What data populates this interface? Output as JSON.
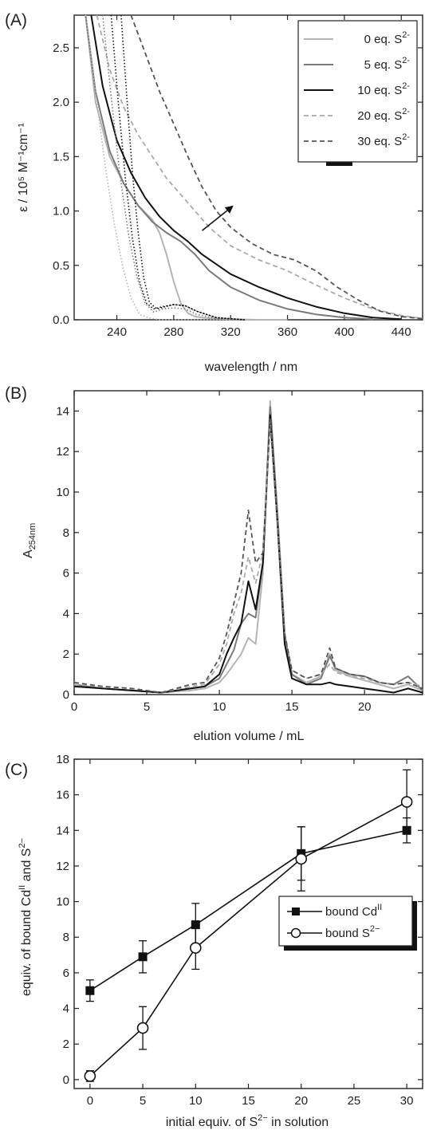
{
  "colors": {
    "light": "#b4b4b4",
    "mid": "#7a7a7a",
    "dark": "#111111",
    "dashLight": "#aaaaaa",
    "dashDark": "#555555"
  },
  "chart_data": [
    {
      "panel": "(A)",
      "type": "line",
      "xlabel": "wavelength / nm",
      "ylabel": "ε / 10⁵ M⁻¹cm⁻¹",
      "xlim": [
        210,
        455
      ],
      "ylim": [
        0,
        2.8
      ],
      "xticks": [
        "240",
        "280",
        "320",
        "360",
        "400",
        "440"
      ],
      "yticks": [
        "0.0",
        "0.5",
        "1.0",
        "1.5",
        "2.0",
        "2.5"
      ],
      "legend_position": "top-right",
      "series": [
        {
          "name": "0 eq. S2-",
          "label_text": "0 eq. S",
          "label_sup": "2-",
          "style": "light-solid",
          "x": [
            218,
            225,
            235,
            245,
            255,
            265,
            270,
            275,
            280,
            285,
            290,
            295,
            300,
            310,
            320,
            340,
            360
          ],
          "y": [
            2.8,
            2.0,
            1.5,
            1.25,
            1.05,
            0.92,
            0.8,
            0.6,
            0.35,
            0.15,
            0.06,
            0.03,
            0.02,
            0.01,
            0.005,
            0.0,
            0.0
          ]
        },
        {
          "name": "5 eq. S2-",
          "label_text": "5 eq. S",
          "label_sup": "2-",
          "style": "mid-solid",
          "x": [
            218,
            225,
            235,
            245,
            255,
            265,
            275,
            285,
            295,
            305,
            320,
            340,
            360,
            380,
            400,
            420
          ],
          "y": [
            2.8,
            2.1,
            1.55,
            1.25,
            1.05,
            0.9,
            0.8,
            0.72,
            0.6,
            0.45,
            0.3,
            0.18,
            0.1,
            0.05,
            0.02,
            0.005
          ]
        },
        {
          "name": "10 eq. S2-",
          "label_text": "10 eq. S",
          "label_sup": "2-",
          "style": "dark-solid",
          "x": [
            222,
            230,
            240,
            250,
            260,
            270,
            280,
            290,
            300,
            320,
            340,
            360,
            380,
            400,
            420,
            440
          ],
          "y": [
            2.8,
            2.15,
            1.65,
            1.35,
            1.12,
            0.95,
            0.82,
            0.72,
            0.6,
            0.42,
            0.3,
            0.2,
            0.12,
            0.06,
            0.02,
            0.005
          ]
        },
        {
          "name": "20 eq. S2-",
          "label_text": "20 eq. S",
          "label_sup": "2-",
          "style": "light-dash",
          "x": [
            226,
            235,
            245,
            255,
            265,
            275,
            285,
            295,
            305,
            320,
            340,
            360,
            380,
            400,
            420,
            440,
            455
          ],
          "y": [
            2.8,
            2.3,
            1.95,
            1.7,
            1.5,
            1.3,
            1.15,
            1.0,
            0.85,
            0.68,
            0.55,
            0.45,
            0.32,
            0.2,
            0.1,
            0.04,
            0.01
          ]
        },
        {
          "name": "30 eq. S2-",
          "label_text": "30 eq. S",
          "label_sup": "2-",
          "style": "dark-dash",
          "x": [
            250,
            260,
            270,
            280,
            290,
            300,
            310,
            320,
            335,
            350,
            365,
            380,
            395,
            410,
            425,
            440,
            455
          ],
          "y": [
            2.8,
            2.45,
            2.1,
            1.8,
            1.5,
            1.22,
            1.0,
            0.85,
            0.7,
            0.6,
            0.55,
            0.45,
            0.3,
            0.18,
            0.08,
            0.03,
            0.01
          ]
        },
        {
          "name": "",
          "style": "dot-light",
          "x": [
            218,
            225,
            232,
            238,
            244,
            250,
            256,
            262,
            270,
            280,
            290,
            300,
            320
          ],
          "y": [
            2.8,
            2.1,
            1.4,
            0.9,
            0.5,
            0.2,
            0.05,
            0.02,
            0.0,
            0.0,
            0.0,
            0.0,
            0.0
          ]
        },
        {
          "name": "",
          "style": "dot-mid",
          "x": [
            230,
            236,
            242,
            248,
            254,
            260,
            266,
            272,
            280,
            288,
            296,
            310,
            330
          ],
          "y": [
            2.8,
            2.05,
            1.35,
            0.8,
            0.4,
            0.15,
            0.07,
            0.1,
            0.11,
            0.1,
            0.05,
            0.01,
            0.0
          ]
        },
        {
          "name": "",
          "style": "dot-dark",
          "x": [
            236,
            241,
            246,
            251,
            256,
            261,
            266,
            272,
            280,
            288,
            296,
            310,
            330
          ],
          "y": [
            2.8,
            2.0,
            1.3,
            0.75,
            0.35,
            0.15,
            0.1,
            0.12,
            0.14,
            0.13,
            0.08,
            0.02,
            0.0
          ]
        },
        {
          "name": "",
          "style": "dot-dark",
          "x": [
            243,
            247,
            251,
            255,
            259,
            263,
            268,
            274,
            280,
            288,
            296,
            310,
            330
          ],
          "y": [
            2.8,
            2.05,
            1.35,
            0.8,
            0.38,
            0.16,
            0.1,
            0.12,
            0.14,
            0.13,
            0.08,
            0.02,
            0.0
          ]
        }
      ],
      "annotations": [
        {
          "type": "arrow",
          "from": [
            300,
            0.82
          ],
          "to": [
            322,
            1.05
          ]
        }
      ]
    },
    {
      "panel": "(B)",
      "type": "line",
      "xlabel": "elution volume / mL",
      "ylabel_main": "A",
      "ylabel_sub": "254nm",
      "xlim": [
        0,
        24
      ],
      "ylim": [
        0,
        15
      ],
      "xticks": [
        "0",
        "5",
        "10",
        "15",
        "20"
      ],
      "yticks": [
        "0",
        "2",
        "4",
        "6",
        "8",
        "10",
        "12",
        "14"
      ],
      "series": [
        {
          "style": "light-solid",
          "x": [
            0,
            2,
            4,
            6,
            8,
            9,
            10,
            10.5,
            11,
            11.5,
            12,
            12.5,
            13,
            13.5,
            14,
            14.5,
            15,
            16,
            17,
            17.6,
            18,
            19,
            20,
            21,
            22,
            23,
            24
          ],
          "y": [
            0.4,
            0.3,
            0.2,
            0.1,
            0.2,
            0.3,
            0.6,
            1.0,
            1.5,
            2.0,
            2.8,
            2.5,
            6.0,
            14.5,
            9.0,
            3.0,
            1.0,
            0.6,
            0.9,
            2.0,
            1.2,
            0.9,
            0.7,
            0.5,
            0.3,
            0.5,
            0.2
          ]
        },
        {
          "style": "mid-solid",
          "x": [
            0,
            2,
            4,
            6,
            8,
            9,
            10,
            10.5,
            11,
            11.5,
            12,
            12.5,
            13,
            13.5,
            14,
            14.5,
            15,
            16,
            17,
            17.6,
            18,
            19,
            20,
            21,
            22,
            23,
            24
          ],
          "y": [
            0.5,
            0.3,
            0.2,
            0.1,
            0.3,
            0.4,
            0.8,
            1.5,
            2.2,
            3.5,
            4.0,
            3.8,
            6.5,
            14.2,
            9.0,
            3.0,
            1.0,
            0.5,
            0.8,
            1.9,
            1.3,
            1.0,
            0.9,
            0.6,
            0.5,
            0.9,
            0.2
          ]
        },
        {
          "style": "dark-solid",
          "x": [
            0,
            2,
            4,
            6,
            8,
            9,
            10,
            10.5,
            11,
            11.5,
            12,
            12.5,
            13,
            13.5,
            14,
            14.5,
            15,
            16,
            17,
            17.6,
            18,
            19,
            20,
            21,
            22,
            23,
            24
          ],
          "y": [
            0.4,
            0.3,
            0.2,
            0.1,
            0.3,
            0.4,
            1.0,
            2.0,
            2.8,
            3.5,
            5.6,
            4.2,
            6.5,
            13.8,
            8.5,
            2.5,
            0.8,
            0.5,
            0.5,
            0.6,
            0.5,
            0.4,
            0.3,
            0.2,
            0.1,
            0.3,
            0.1
          ]
        },
        {
          "style": "light-dash",
          "x": [
            0,
            2,
            4,
            6,
            8,
            9,
            10,
            10.5,
            11,
            11.5,
            12,
            12.5,
            13,
            13.5,
            14,
            14.5,
            15,
            16,
            17,
            17.6,
            18,
            19,
            20,
            21,
            22,
            23,
            24
          ],
          "y": [
            0.5,
            0.4,
            0.3,
            0.1,
            0.4,
            0.5,
            1.5,
            2.5,
            4.0,
            5.0,
            6.8,
            5.5,
            7.0,
            13.5,
            8.5,
            3.0,
            1.2,
            0.8,
            1.0,
            1.5,
            1.1,
            0.9,
            0.8,
            0.6,
            0.5,
            0.6,
            0.4
          ]
        },
        {
          "style": "dark-dash",
          "x": [
            0,
            2,
            4,
            6,
            8,
            9,
            10,
            10.5,
            11,
            11.5,
            12,
            12.5,
            13,
            13.5,
            14,
            14.5,
            15,
            16,
            17,
            17.6,
            18,
            19,
            20,
            21,
            22,
            23,
            24
          ],
          "y": [
            0.6,
            0.4,
            0.3,
            0.1,
            0.5,
            0.6,
            1.8,
            3.0,
            4.5,
            6.0,
            9.1,
            6.5,
            7.0,
            13.6,
            8.5,
            3.0,
            1.2,
            0.8,
            1.0,
            2.3,
            1.3,
            1.0,
            0.9,
            0.6,
            0.5,
            0.6,
            0.3
          ]
        }
      ]
    },
    {
      "panel": "(C)",
      "type": "scatter",
      "xlabel_text": "initial equiv. of S",
      "xlabel_sup": "2−",
      "xlabel_tail": " in solution",
      "ylabel_text": "equiv. of bound Cd",
      "ylabel_sup1": "II",
      "ylabel_mid": " and S",
      "ylabel_sup2": "2−",
      "xlim": [
        -1.5,
        31.5
      ],
      "ylim": [
        -0.5,
        18
      ],
      "xticks": [
        "0",
        "5",
        "10",
        "15",
        "20",
        "25",
        "30"
      ],
      "yticks": [
        "0",
        "2",
        "4",
        "6",
        "8",
        "10",
        "12",
        "14",
        "16",
        "18"
      ],
      "legend_position": "bottom-right",
      "series": [
        {
          "name": "bound CdII",
          "label_text": "bound Cd",
          "label_sup": "II",
          "marker": "square-filled",
          "x": [
            0,
            5,
            10,
            20,
            30
          ],
          "y": [
            5.0,
            6.9,
            8.7,
            12.7,
            14.0
          ],
          "err": [
            0.6,
            0.9,
            1.2,
            1.5,
            0.7
          ]
        },
        {
          "name": "bound S2−",
          "label_text": "bound S",
          "label_sup": "2−",
          "marker": "circle-open",
          "x": [
            0,
            5,
            10,
            20,
            30
          ],
          "y": [
            0.2,
            2.9,
            7.4,
            12.4,
            15.6
          ],
          "err": [
            0.3,
            1.2,
            1.2,
            1.8,
            1.8
          ]
        }
      ]
    }
  ]
}
